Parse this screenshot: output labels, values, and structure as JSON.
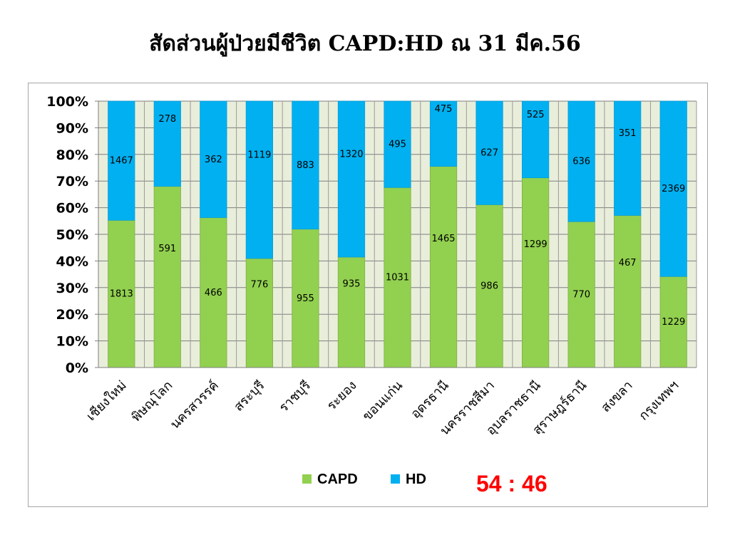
{
  "slide": {
    "title": "สัดส่วนผู้ป่วยมีชีวิต  CAPD:HD ณ 31 มีค.56"
  },
  "chart_data": {
    "type": "bar",
    "stacked": "percent",
    "categories": [
      "เชียงใหม่",
      "พิษณุโลก",
      "นครสวรรค์",
      "สระบุรี",
      "ราชบุรี",
      "ระยอง",
      "ขอนแก่น",
      "อุดรธานี",
      "นครราชสีมา",
      "อุบลราชธานี",
      "สุราษฎร์ธานี",
      "สงขลา",
      "กรุงเทพฯ"
    ],
    "series": [
      {
        "name": "CAPD",
        "color": "#92d050",
        "values": [
          1813,
          591,
          466,
          776,
          955,
          935,
          1031,
          1465,
          986,
          1299,
          770,
          467,
          1229
        ]
      },
      {
        "name": "HD",
        "color": "#00b0f0",
        "values": [
          1467,
          278,
          362,
          1119,
          883,
          1320,
          495,
          475,
          627,
          525,
          636,
          351,
          2369
        ]
      }
    ],
    "y_ticks": [
      "0%",
      "10%",
      "20%",
      "30%",
      "40%",
      "50%",
      "60%",
      "70%",
      "80%",
      "90%",
      "100%"
    ],
    "ylim": [
      0,
      100
    ],
    "legend_position": "bottom",
    "annotation": {
      "text": "54 : 46",
      "color": "#ff0000"
    }
  }
}
